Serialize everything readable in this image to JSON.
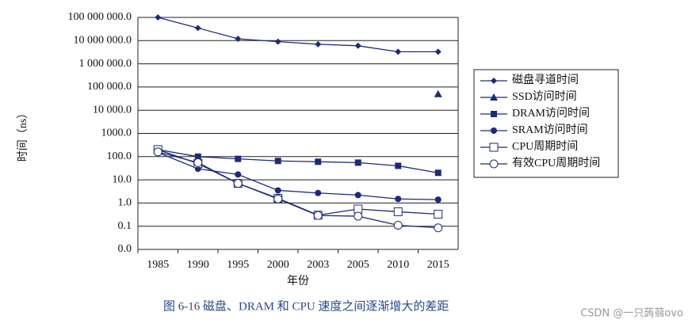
{
  "chart_data": {
    "type": "line",
    "caption": "图 6-16  磁盘、DRAM 和 CPU 速度之间逐渐增大的差距",
    "watermark": "CSDN @一只蒟蒻ovo",
    "x_label": "年份",
    "y_label": "时间（ns）",
    "categories": [
      "1985",
      "1990",
      "1995",
      "2000",
      "2003",
      "2005",
      "2010",
      "2015"
    ],
    "log_scale": true,
    "grid": true,
    "legend": "right",
    "ylim": [
      0.01,
      100000000
    ],
    "yticks": [
      {
        "value": 0.01,
        "label": "0.0"
      },
      {
        "value": 0.1,
        "label": "0.1"
      },
      {
        "value": 1,
        "label": "1.0"
      },
      {
        "value": 10,
        "label": "10.0"
      },
      {
        "value": 100,
        "label": "100.0"
      },
      {
        "value": 1000,
        "label": "1000.0"
      },
      {
        "value": 10000,
        "label": "10 000.0"
      },
      {
        "value": 100000,
        "label": "100 000.0"
      },
      {
        "value": 1000000,
        "label": "1 000 000.0"
      },
      {
        "value": 10000000,
        "label": "10 000 000.0"
      },
      {
        "value": 100000000,
        "label": "100 000 000.0"
      }
    ],
    "series": [
      {
        "name": "磁盘寻道时间",
        "color": "#1e2a78",
        "marker": "diamond",
        "values": [
          100000000,
          35000000,
          12000000,
          9000000,
          7000000,
          6000000,
          3300000,
          3300000
        ]
      },
      {
        "name": "SSD访问时间",
        "color": "#1e2a78",
        "marker": "triangle",
        "values": [
          null,
          null,
          null,
          null,
          null,
          null,
          null,
          50000
        ]
      },
      {
        "name": "DRAM访问时间",
        "color": "#1e2a78",
        "marker": "square",
        "values": [
          200,
          100,
          80,
          65,
          60,
          55,
          40,
          20
        ]
      },
      {
        "name": "SRAM访问时间",
        "color": "#1e2a78",
        "marker": "circle",
        "values": [
          150,
          30,
          17,
          3.5,
          2.7,
          2.2,
          1.5,
          1.4
        ]
      },
      {
        "name": "CPU周期时间",
        "color": "#1e2a78",
        "marker": "open-square",
        "values": [
          200,
          50,
          7,
          1.6,
          0.3,
          0.55,
          0.42,
          0.33
        ]
      },
      {
        "name": "有效CPU周期时间",
        "color": "#1e2a78",
        "marker": "open-circle",
        "values": [
          160,
          55,
          7,
          1.5,
          0.29,
          0.27,
          0.11,
          0.085
        ]
      }
    ]
  }
}
